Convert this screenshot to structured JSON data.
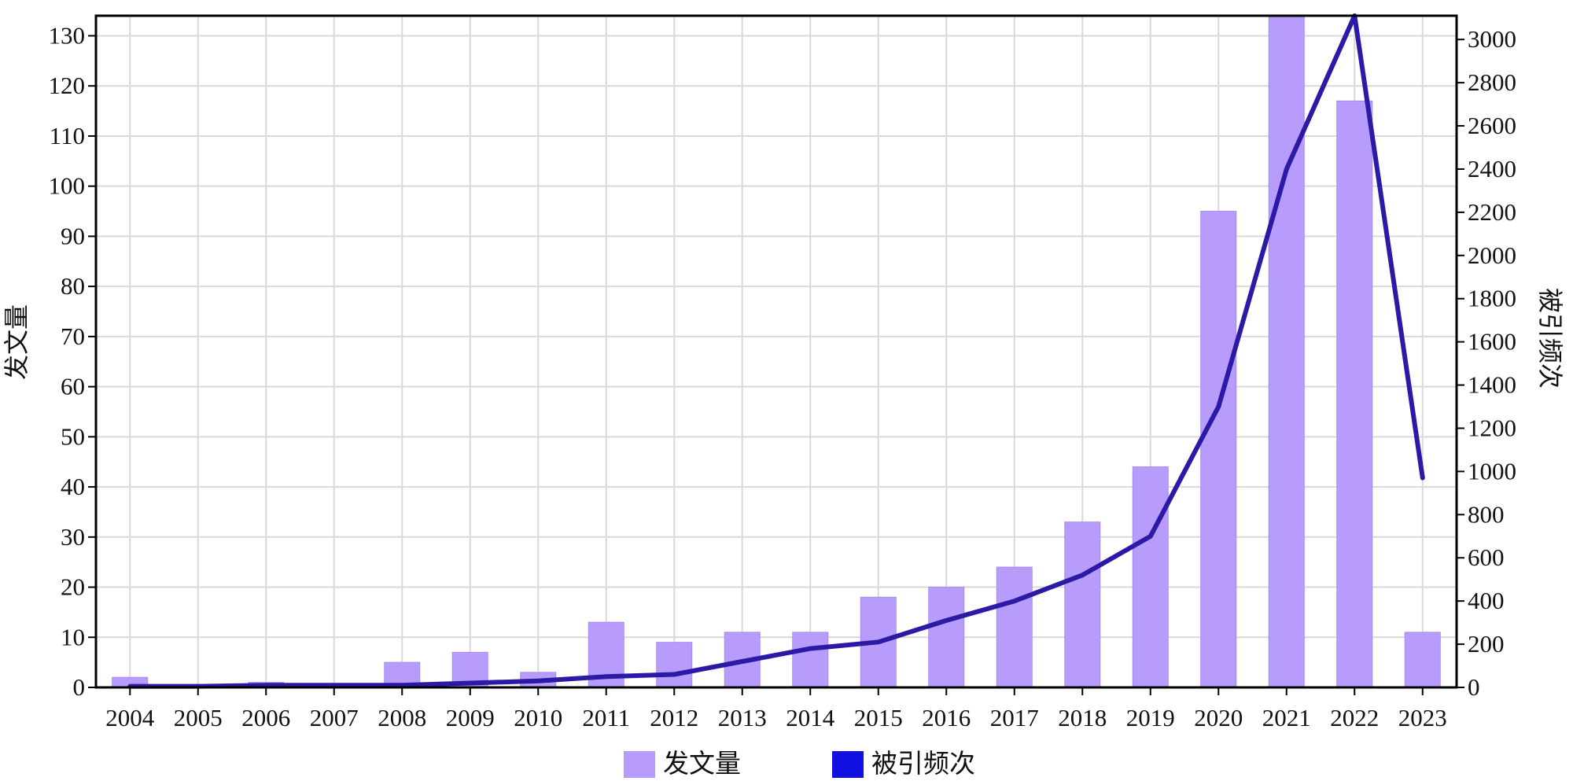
{
  "chart_data": {
    "type": "bar",
    "categories": [
      "2004",
      "2005",
      "2006",
      "2007",
      "2008",
      "2009",
      "2010",
      "2011",
      "2012",
      "2013",
      "2014",
      "2015",
      "2016",
      "2017",
      "2018",
      "2019",
      "2020",
      "2021",
      "2022",
      "2023"
    ],
    "series": [
      {
        "name": "发文量",
        "type": "bar",
        "axis": "left",
        "color": "#b89cfb",
        "values": [
          2,
          0,
          1,
          0,
          5,
          7,
          3,
          13,
          9,
          11,
          11,
          18,
          20,
          24,
          33,
          44,
          95,
          134,
          117,
          11
        ]
      },
      {
        "name": "被引频次",
        "type": "line",
        "axis": "right",
        "color": "#2b1aa6",
        "values": [
          5,
          5,
          10,
          10,
          10,
          20,
          30,
          50,
          60,
          120,
          180,
          210,
          310,
          400,
          520,
          700,
          1300,
          2400,
          3110,
          970
        ]
      }
    ],
    "ylabel": "发文量",
    "ylabel_right": "被引频次",
    "ylim": [
      0,
      134
    ],
    "ylim_right": [
      0,
      3110
    ],
    "yticks": [
      0,
      10,
      20,
      30,
      40,
      50,
      60,
      70,
      80,
      90,
      100,
      110,
      120,
      130
    ],
    "yticks_right": [
      0,
      200,
      400,
      600,
      800,
      1000,
      1200,
      1400,
      1600,
      1800,
      2000,
      2200,
      2400,
      2600,
      2800,
      3000
    ],
    "grid": true,
    "legend": "bottom-center",
    "legend_colors": [
      "#b89cfb",
      "#1010e0"
    ]
  }
}
